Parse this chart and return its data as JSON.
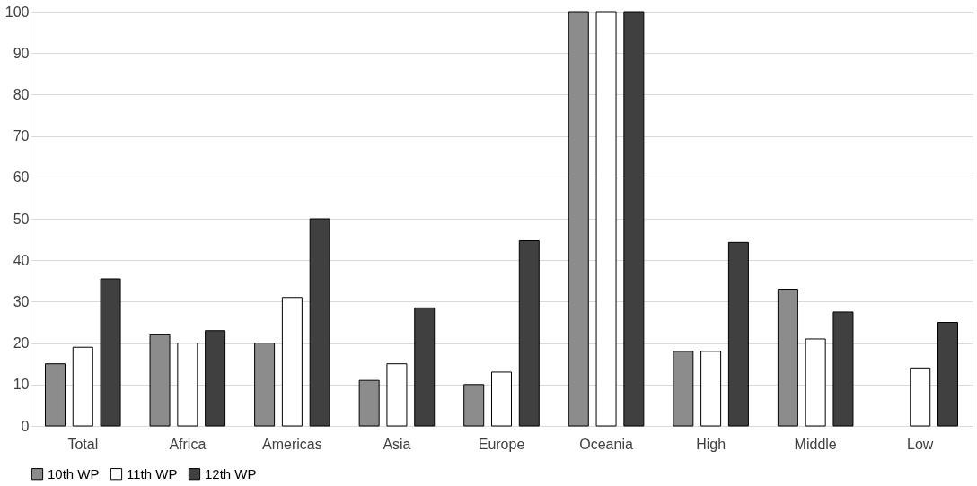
{
  "chart_data": {
    "type": "bar",
    "categories": [
      "Total",
      "Africa",
      "Americas",
      "Asia",
      "Europe",
      "Oceania",
      "High",
      "Middle",
      "Low"
    ],
    "series": [
      {
        "name": "10th WP",
        "color": "#8c8c8c",
        "values": [
          15,
          22,
          20,
          11,
          10,
          100,
          18,
          33,
          null
        ]
      },
      {
        "name": "11th WP",
        "color": "#ffffff",
        "values": [
          19,
          20,
          31,
          15,
          13,
          100,
          18,
          21,
          14
        ]
      },
      {
        "name": "12th WP",
        "color": "#404040",
        "values": [
          35.5,
          23,
          50,
          28.5,
          44.7,
          100,
          44.3,
          27.5,
          25
        ]
      }
    ],
    "ylim": [
      0,
      100
    ],
    "yticks": [
      0,
      10,
      20,
      30,
      40,
      50,
      60,
      70,
      80,
      90,
      100
    ],
    "grid": "y",
    "legend": "bottom"
  }
}
